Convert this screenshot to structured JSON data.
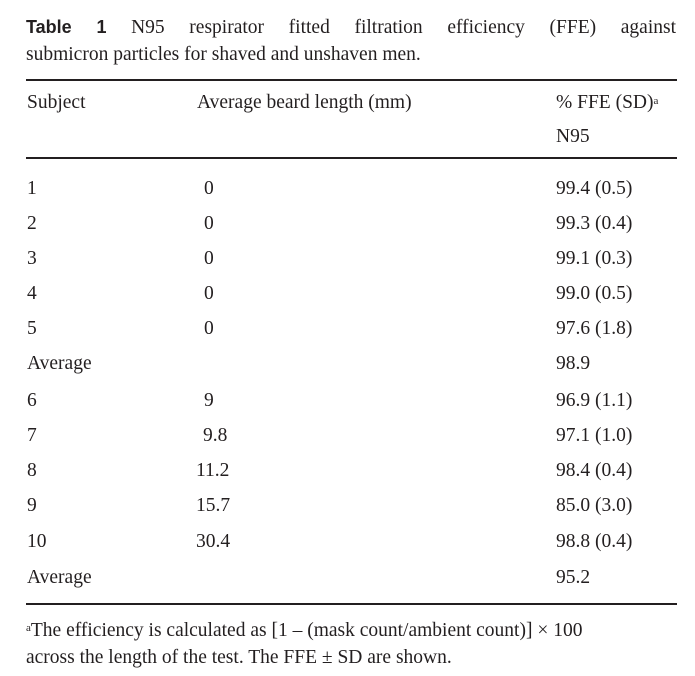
{
  "caption": {
    "label": "Table 1",
    "text_line1": "N95 respirator fitted filtration efficiency (FFE) against",
    "text_line2": "submicron particles for shaved and unshaven men."
  },
  "headers": {
    "col1": "Subject",
    "col2": "Average beard length (mm)",
    "col3": "% FFE (SD)",
    "col3_sup": "a",
    "col3_sub": "N95"
  },
  "rows": [
    {
      "subject": "1",
      "beard": "0",
      "ffe": "99.4 (0.5)"
    },
    {
      "subject": "2",
      "beard": "0",
      "ffe": "99.3 (0.4)"
    },
    {
      "subject": "3",
      "beard": "0",
      "ffe": "99.1 (0.3)"
    },
    {
      "subject": "4",
      "beard": "0",
      "ffe": "99.0 (0.5)"
    },
    {
      "subject": "5",
      "beard": "0",
      "ffe": "97.6 (1.8)"
    },
    {
      "subject": "Average",
      "beard": "",
      "ffe": "98.9"
    },
    {
      "subject": "6",
      "beard": "9",
      "ffe": "96.9 (1.1)"
    },
    {
      "subject": "7",
      "beard": "9.8",
      "ffe": "97.1 (1.0)"
    },
    {
      "subject": "8",
      "beard": "11.2",
      "ffe": "98.4 (0.4)"
    },
    {
      "subject": "9",
      "beard": "15.7",
      "ffe": "85.0 (3.0)"
    },
    {
      "subject": "10",
      "beard": "30.4",
      "ffe": "98.8 (0.4)"
    },
    {
      "subject": "Average",
      "beard": "",
      "ffe": "95.2"
    }
  ],
  "footnote": {
    "marker": "a",
    "line1": "The efficiency is calculated as [1 – (mask count/ambient count)] × 100",
    "line2": "across the length of the test. The FFE ± SD are shown."
  }
}
